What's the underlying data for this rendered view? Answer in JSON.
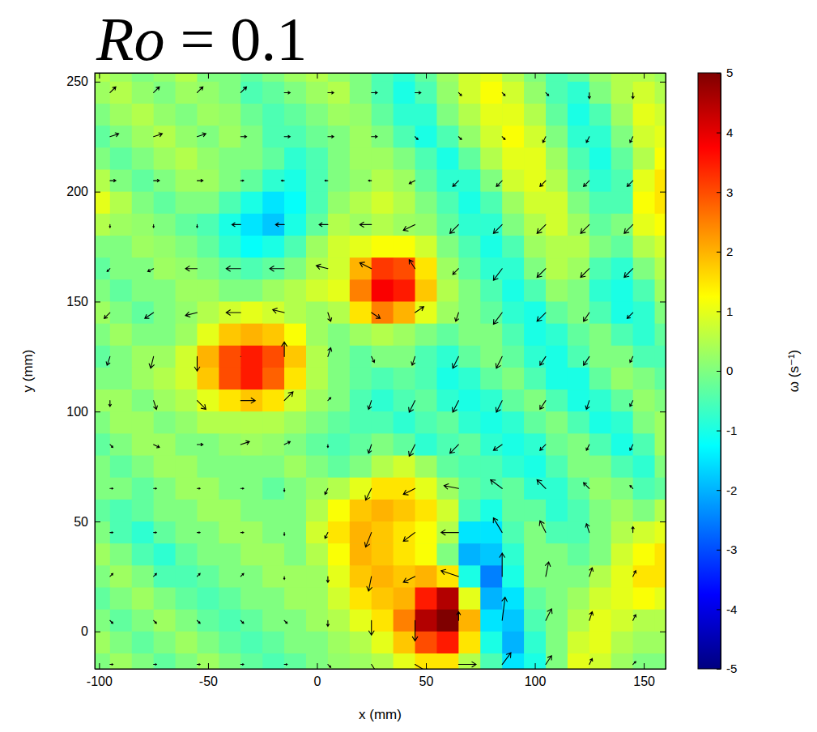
{
  "chart_data": {
    "type": "heatmap",
    "title": "Ro = 0.1",
    "x_label": "x (mm)",
    "y_label": "y (mm)",
    "color": "jet",
    "xlim": [
      -102,
      160
    ],
    "ylim": [
      -17,
      254
    ],
    "xticks": [
      -100,
      -50,
      0,
      50,
      100,
      150
    ],
    "yticks": [
      0,
      50,
      100,
      150,
      200,
      250
    ],
    "x": [
      -100,
      -90,
      -80,
      -70,
      -60,
      -50,
      -40,
      -30,
      -20,
      -10,
      0,
      10,
      20,
      30,
      40,
      50,
      60,
      70,
      80,
      90,
      100,
      110,
      120,
      130,
      140,
      150,
      160
    ],
    "y": [
      255,
      245,
      235,
      225,
      215,
      205,
      195,
      185,
      175,
      165,
      155,
      145,
      135,
      125,
      115,
      105,
      95,
      85,
      75,
      65,
      55,
      45,
      35,
      25,
      15,
      5,
      -5,
      -15
    ],
    "z": [
      [
        0.5,
        0.3,
        0,
        0.2,
        0.5,
        0,
        0,
        -0.3,
        0,
        0.3,
        0.5,
        0.2,
        0,
        -0.5,
        -0.8,
        -0.3,
        0.3,
        0.8,
        1,
        0.5,
        0,
        -0.5,
        -0.3,
        0.2,
        0.5,
        0.5,
        0.3
      ],
      [
        0.3,
        0.5,
        0.2,
        0,
        0.3,
        0.2,
        0,
        -0.5,
        -0.3,
        0,
        0.3,
        0.5,
        0,
        -0.5,
        -1,
        -0.5,
        0.2,
        0.8,
        1.2,
        0.8,
        0.2,
        -0.5,
        -0.8,
        0,
        0.5,
        0.8,
        0.5
      ],
      [
        0,
        0.3,
        0.5,
        0.2,
        0,
        0.3,
        0.2,
        -0.2,
        -0.5,
        -0.3,
        0,
        0.3,
        0.2,
        -0.3,
        -0.8,
        -0.8,
        0,
        0.5,
        1,
        1,
        0.5,
        -0.3,
        -1,
        -0.5,
        0.3,
        1,
        0.8
      ],
      [
        -0.3,
        0,
        0.3,
        0.5,
        0.2,
        0,
        0.3,
        0,
        -0.5,
        -0.5,
        -0.2,
        0,
        0.3,
        0,
        -0.5,
        -1,
        -0.5,
        0.2,
        0.8,
        1.2,
        0.8,
        0,
        -0.8,
        -0.8,
        0,
        0.8,
        1
      ],
      [
        0,
        -0.3,
        0,
        0.3,
        0.5,
        0.2,
        0,
        0,
        -0.3,
        -0.8,
        -0.5,
        0,
        0.3,
        0.3,
        0,
        -0.5,
        -1,
        -0.3,
        0.5,
        1,
        1,
        0.3,
        -0.5,
        -1,
        -0.3,
        0.5,
        1.2
      ],
      [
        0.5,
        0,
        -0.3,
        0,
        0.3,
        0.3,
        0,
        -0.3,
        -0.8,
        -1,
        -0.5,
        0,
        0.2,
        0.5,
        0.3,
        -0.3,
        -0.8,
        -0.8,
        0,
        0.8,
        1,
        0.5,
        -0.3,
        -0.8,
        -0.5,
        1,
        1.5
      ],
      [
        1,
        0.5,
        0,
        -0.3,
        0,
        0,
        -0.5,
        -1,
        -1.5,
        -1.2,
        -0.5,
        0.2,
        0.5,
        0.8,
        0.5,
        0,
        -0.5,
        -1,
        -0.5,
        0.3,
        0.8,
        0.8,
        0,
        -0.5,
        -0.5,
        1.2,
        1.5
      ],
      [
        0.5,
        0.3,
        0.2,
        0,
        -0.3,
        -0.5,
        -1,
        -1.5,
        -1.8,
        -1,
        -0.3,
        0.5,
        0.3,
        0.5,
        0.3,
        0.2,
        -0.3,
        -0.8,
        -0.8,
        0,
        0.5,
        0.8,
        0.3,
        -0.3,
        0,
        1,
        1.2
      ],
      [
        0,
        0,
        0.3,
        0.2,
        0,
        -0.3,
        -0.8,
        -1.2,
        -1,
        -0.5,
        0.3,
        0.8,
        1,
        1.2,
        1.2,
        0.8,
        0,
        -0.5,
        -1,
        -0.5,
        0.3,
        0.5,
        0.5,
        0,
        -0.3,
        0.5,
        0.8
      ],
      [
        -0.3,
        0,
        0,
        0.3,
        0.2,
        0,
        -0.3,
        -0.5,
        -0.3,
        0,
        0.5,
        0.8,
        2,
        3.2,
        3,
        1.5,
        0.3,
        -0.3,
        -0.8,
        -0.8,
        0,
        0.5,
        0.3,
        -0.5,
        -0.8,
        0,
        0.5
      ],
      [
        0,
        -0.3,
        0,
        0,
        0.3,
        0.3,
        0,
        0,
        0.3,
        0.5,
        0.8,
        1,
        2.5,
        3.8,
        3.5,
        1.8,
        0.5,
        0,
        -0.5,
        -1,
        -0.5,
        0.2,
        0,
        -0.8,
        -1,
        -0.5,
        0.3
      ],
      [
        0.3,
        0,
        -0.3,
        0,
        0.2,
        0.5,
        0.8,
        1,
        0.8,
        0.5,
        0.3,
        0.5,
        1.5,
        2.5,
        2,
        1,
        0.3,
        0,
        -0.3,
        -0.8,
        -1,
        -0.3,
        0,
        -0.5,
        -1,
        -0.8,
        0
      ],
      [
        0,
        0.3,
        0,
        0,
        0.3,
        1,
        1.8,
        2,
        1.8,
        1.2,
        0.3,
        0,
        0.3,
        0.5,
        0.3,
        0,
        -0.3,
        0,
        0,
        -0.5,
        -1,
        -0.8,
        -0.3,
        0,
        -0.5,
        -0.8,
        -0.3
      ],
      [
        -0.3,
        0,
        0.3,
        0.3,
        0.8,
        2,
        3,
        3.5,
        3,
        1.8,
        0.5,
        0,
        -0.3,
        0,
        0,
        -0.5,
        -0.8,
        -0.3,
        0,
        -0.3,
        -0.8,
        -1,
        -0.5,
        0,
        0,
        -0.5,
        -0.5
      ],
      [
        0,
        0,
        0.3,
        0.5,
        0.8,
        1.8,
        3,
        3.5,
        2.8,
        1.5,
        0.5,
        0,
        -0.3,
        -0.5,
        -0.3,
        -0.5,
        -1,
        -0.8,
        -0.3,
        0,
        -0.5,
        -1,
        -1,
        -0.3,
        0.2,
        0,
        -0.3
      ],
      [
        0.3,
        0.3,
        0,
        0.3,
        0.5,
        1,
        1.5,
        1.8,
        1.5,
        0.8,
        0.3,
        0,
        -0.5,
        -0.8,
        -0.5,
        -0.3,
        -0.8,
        -1,
        -0.8,
        -0.3,
        0,
        -0.5,
        -1,
        -0.8,
        -0.3,
        0.2,
        0
      ],
      [
        0,
        0.3,
        0.3,
        0,
        0.2,
        0.5,
        0.5,
        0.5,
        0.5,
        0.3,
        0,
        -0.3,
        -0.5,
        -0.5,
        -0.8,
        -0.5,
        -0.3,
        -0.8,
        -1,
        -0.8,
        -0.3,
        0,
        -0.5,
        -1,
        -0.8,
        0,
        0.3
      ],
      [
        -0.3,
        0,
        0.3,
        0.3,
        0,
        0,
        0.2,
        0.3,
        0.2,
        0,
        -0.3,
        -0.5,
        -0.3,
        0,
        -0.3,
        -0.8,
        -0.5,
        -0.3,
        -0.8,
        -1,
        -0.8,
        -0.2,
        0,
        -0.5,
        -1,
        -0.5,
        0.3
      ],
      [
        0,
        -0.3,
        0,
        0.3,
        0.3,
        0,
        0,
        0,
        0,
        0.3,
        0,
        -0.3,
        0,
        0.5,
        0.8,
        0.3,
        -0.3,
        -0.5,
        -0.5,
        -0.8,
        -1,
        -0.5,
        0,
        0,
        -0.5,
        -0.8,
        0
      ],
      [
        0,
        0,
        -0.3,
        0,
        0.3,
        0.3,
        0,
        0,
        -0.3,
        0,
        0.3,
        0.5,
        1,
        1.5,
        1.5,
        1,
        0.3,
        -0.3,
        -0.5,
        -0.3,
        -0.8,
        -0.8,
        -0.3,
        0.2,
        0,
        -0.5,
        -0.3
      ],
      [
        -0.3,
        -0.5,
        -0.3,
        0,
        0,
        0.3,
        0.3,
        0,
        0,
        0,
        0.5,
        1.2,
        1.8,
        2,
        1.8,
        1.5,
        0.8,
        -0.5,
        -1,
        -0.3,
        -0.3,
        -0.8,
        -0.5,
        0,
        0.3,
        0,
        0.5
      ],
      [
        0,
        -0.5,
        -0.8,
        -0.3,
        0,
        0,
        0.3,
        0.3,
        0,
        0,
        0.8,
        1.5,
        2,
        1.8,
        1.5,
        1.2,
        0.5,
        -1.5,
        -1.5,
        -0.5,
        0,
        -0.5,
        -0.5,
        0,
        0.5,
        0.8,
        1
      ],
      [
        0.3,
        0,
        -0.5,
        -0.8,
        -0.3,
        0,
        0,
        0.3,
        0.3,
        0,
        0.5,
        1.2,
        2,
        1.8,
        1.5,
        1.2,
        0,
        -2,
        -1.8,
        -0.8,
        0,
        0,
        -0.3,
        0,
        0.8,
        1.2,
        1.5
      ],
      [
        0,
        0.3,
        0,
        -0.5,
        -0.5,
        -0.3,
        0,
        0,
        0.3,
        0.3,
        0.3,
        1,
        1.8,
        2,
        1.8,
        2,
        1.5,
        -1,
        -2.5,
        -1,
        0,
        0,
        0,
        0.5,
        1,
        1.5,
        1.5
      ],
      [
        -0.3,
        0,
        0.3,
        0,
        -0.3,
        -0.5,
        -0.3,
        0,
        0,
        0.3,
        0.3,
        0.8,
        1.5,
        1.8,
        2,
        3.5,
        4.5,
        1,
        -2,
        -1.5,
        -0.3,
        0,
        0.3,
        0.8,
        1,
        1.2,
        1
      ],
      [
        0,
        -0.3,
        0,
        0.3,
        0,
        -0.3,
        -0.5,
        -0.3,
        0,
        0,
        0.3,
        0.5,
        1,
        1.5,
        2.5,
        4.5,
        5,
        2,
        -1.5,
        -1.8,
        -0.5,
        0,
        0.5,
        1,
        0.8,
        0.5,
        0.5
      ],
      [
        0.3,
        0,
        -0.3,
        0,
        0.3,
        0,
        -0.3,
        -0.5,
        -0.3,
        0,
        0,
        0.3,
        0.5,
        1,
        1.8,
        3,
        3.5,
        1.5,
        -1,
        -2,
        -0.8,
        0,
        0.8,
        1,
        0.5,
        0.3,
        0.3
      ],
      [
        0,
        0.3,
        0,
        -0.3,
        0,
        0.3,
        0,
        -0.3,
        -0.5,
        -0.3,
        0,
        0.2,
        0.3,
        0.5,
        1,
        1.5,
        1.5,
        0.5,
        -0.5,
        -1.5,
        -1,
        0,
        1,
        0.8,
        0.3,
        0,
        0
      ]
    ],
    "colorbar": {
      "label": "ω (s⁻¹)",
      "range": [
        -5,
        5
      ],
      "ticks": [
        -5,
        -4,
        -3,
        -2,
        -1,
        0,
        1,
        2,
        3,
        4,
        5
      ]
    },
    "quiver": {
      "x": [
        -95,
        -75,
        -55,
        -35,
        -15,
        5,
        25,
        45,
        65,
        85,
        105,
        125,
        145
      ],
      "y": [
        245,
        225,
        205,
        185,
        165,
        145,
        125,
        105,
        85,
        65,
        45,
        25,
        5,
        -15
      ],
      "u": [
        [
          2,
          2,
          2,
          2,
          2,
          2,
          2,
          2,
          1,
          1,
          1,
          0,
          0
        ],
        [
          3,
          3,
          3,
          2,
          2,
          2,
          2,
          1,
          1,
          1,
          -1,
          -1,
          -1
        ],
        [
          2,
          2,
          2,
          1,
          -1,
          -1,
          -1,
          -2,
          -2,
          -2,
          -2,
          -2,
          -2
        ],
        [
          0,
          0,
          0,
          -3,
          -3,
          -3,
          -4,
          -4,
          -3,
          -3,
          -3,
          -3,
          -3
        ],
        [
          -1,
          -2,
          -4,
          -5,
          -5,
          -4,
          -4,
          -2,
          -2,
          -3,
          -3,
          -3,
          -3
        ],
        [
          -2,
          -3,
          -4,
          -5,
          -4,
          1,
          3,
          3,
          -1,
          -3,
          -3,
          -2,
          -2
        ],
        [
          -1,
          -1,
          0,
          0,
          0,
          1,
          1,
          -1,
          -2,
          -2,
          -2,
          -2,
          -1
        ],
        [
          0,
          1,
          3,
          5,
          3,
          1,
          -1,
          -2,
          -2,
          -2,
          -2,
          -1,
          -1
        ],
        [
          1,
          2,
          2,
          3,
          2,
          0,
          -1,
          -2,
          -3,
          -3,
          -2,
          -1,
          -1
        ],
        [
          1,
          1,
          1,
          1,
          0,
          -1,
          -2,
          -4,
          -5,
          -4,
          -3,
          -2,
          -1
        ],
        [
          1,
          1,
          1,
          1,
          0,
          -1,
          -2,
          -4,
          -6,
          -3,
          -2,
          -1,
          0
        ],
        [
          1,
          1,
          1,
          1,
          0,
          0,
          -1,
          -4,
          -6,
          0,
          1,
          1,
          1
        ],
        [
          1,
          1,
          1,
          1,
          1,
          0,
          0,
          0,
          0,
          1,
          2,
          1,
          1
        ],
        [
          1,
          1,
          1,
          1,
          1,
          1,
          2,
          5,
          6,
          3,
          2,
          1,
          1
        ]
      ],
      "v": [
        [
          2,
          2,
          2,
          2,
          0,
          0,
          0,
          0,
          -1,
          -1,
          -1,
          -2,
          -2
        ],
        [
          1,
          1,
          1,
          0,
          0,
          0,
          0,
          -1,
          -1,
          -1,
          -2,
          -2,
          -2
        ],
        [
          0,
          0,
          0,
          0,
          0,
          0,
          0,
          -1,
          -2,
          -2,
          -2,
          -2,
          -2
        ],
        [
          -1,
          -1,
          -1,
          0,
          0,
          0,
          0,
          -2,
          -3,
          -3,
          -3,
          -3,
          -3
        ],
        [
          -1,
          -1,
          0,
          0,
          0,
          1,
          2,
          3,
          -2,
          -4,
          -3,
          -3,
          -3
        ],
        [
          -2,
          -2,
          -1,
          0,
          1,
          -3,
          -2,
          2,
          -3,
          -4,
          -3,
          -3,
          -2
        ],
        [
          -3,
          -4,
          -5,
          0,
          5,
          3,
          -2,
          -3,
          -4,
          -4,
          -3,
          -3,
          -2
        ],
        [
          -2,
          -3,
          -3,
          0,
          3,
          1,
          -3,
          -4,
          -4,
          -4,
          -3,
          -3,
          -2
        ],
        [
          -1,
          -1,
          0,
          1,
          1,
          -1,
          -3,
          -4,
          -3,
          -2,
          -2,
          -2,
          -2
        ],
        [
          0,
          0,
          0,
          0,
          -1,
          -2,
          -4,
          -2,
          1,
          3,
          3,
          2,
          1
        ],
        [
          0,
          0,
          0,
          0,
          -1,
          -2,
          -5,
          -3,
          0,
          5,
          4,
          3,
          2
        ],
        [
          1,
          1,
          1,
          1,
          -1,
          -2,
          -5,
          -2,
          2,
          8,
          5,
          3,
          2
        ],
        [
          -1,
          -1,
          -1,
          -1,
          -1,
          -2,
          -5,
          -7,
          3,
          8,
          4,
          3,
          2
        ],
        [
          0,
          0,
          0,
          0,
          0,
          -1,
          -3,
          -3,
          0,
          4,
          3,
          2,
          1
        ]
      ]
    }
  }
}
